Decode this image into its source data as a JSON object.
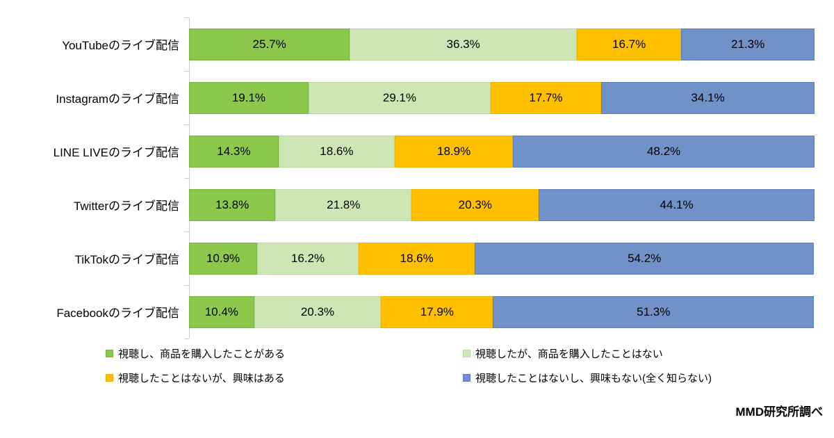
{
  "chart_data": {
    "type": "bar",
    "orientation": "horizontal-stacked",
    "title": "",
    "xlabel": "",
    "ylabel": "",
    "xlim": [
      0,
      100
    ],
    "value_suffix": "%",
    "grid": false,
    "legend_position": "bottom",
    "categories": [
      "YouTubeのライブ配信",
      "Instagramのライブ配信",
      "LINE LIVEのライブ配信",
      "Twitterのライブ配信",
      "TikTokのライブ配信",
      "Facebookのライブ配信"
    ],
    "series": [
      {
        "name": "視聴し、商品を購入したことがある",
        "color": "#8cc84b",
        "border_color": "#7ab438",
        "values": [
          25.7,
          19.1,
          14.3,
          13.8,
          10.9,
          10.4
        ]
      },
      {
        "name": "視聴したが、商品を購入したことはない",
        "color": "#cde6b3",
        "border_color": "#bcd99d",
        "values": [
          36.3,
          29.1,
          18.6,
          21.8,
          16.2,
          20.3
        ]
      },
      {
        "name": "視聴したことはないが、興味はある",
        "color": "#ffc000",
        "border_color": "#edb100",
        "values": [
          16.7,
          17.7,
          18.9,
          20.3,
          18.6,
          17.9
        ]
      },
      {
        "name": "視聴したことはないし、興味もない(全く知らない)",
        "color": "#7191c9",
        "border_color": "#5b7ebf",
        "values": [
          21.3,
          34.1,
          48.2,
          44.1,
          54.2,
          51.3
        ]
      }
    ],
    "source": "MMD研究所調べ"
  },
  "colors": {
    "axis": "#d0cece",
    "text": "#000000",
    "background": "#ffffff"
  }
}
